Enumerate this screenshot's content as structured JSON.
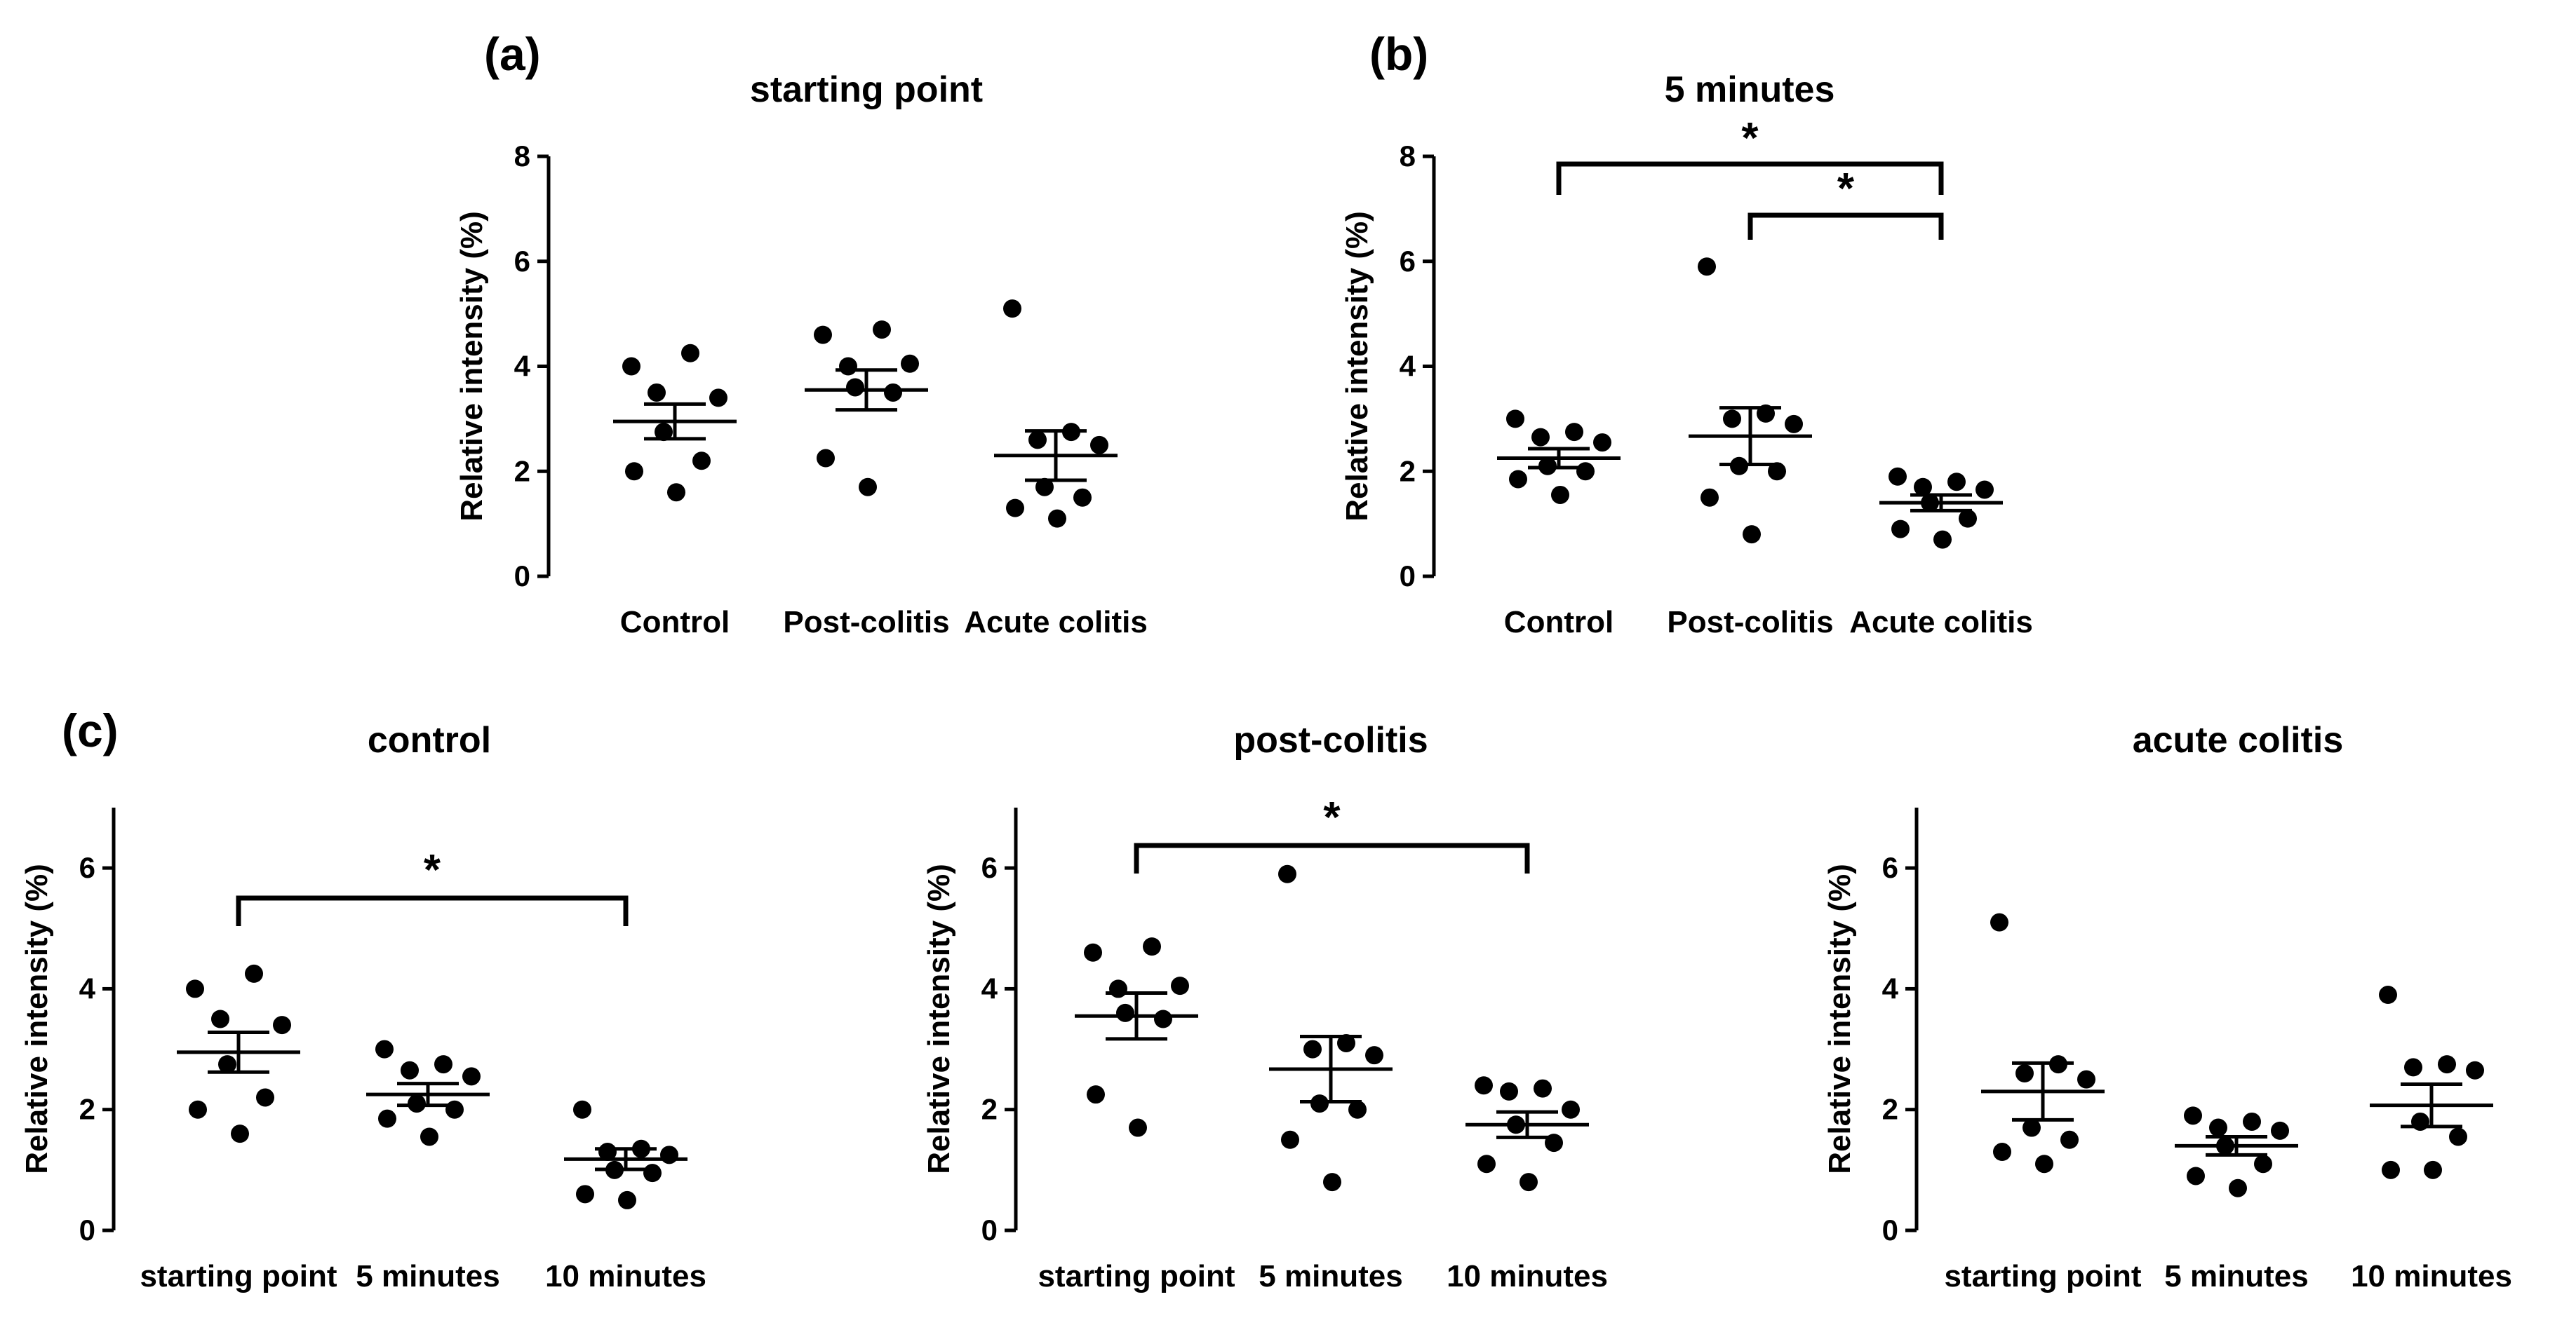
{
  "panel_labels": [
    "(a)",
    "(b)",
    "(c)"
  ],
  "chart_data": [
    {
      "type": "scatter",
      "title": "starting point",
      "ylabel": "Relative intensity (%)",
      "ylim": [
        0,
        8
      ],
      "yticks": [
        0,
        2,
        4,
        6,
        8
      ],
      "categories": [
        "Control",
        "Post-colitis",
        "Acute colitis"
      ],
      "points": [
        [
          4.0,
          4.25,
          3.5,
          3.4,
          2.75,
          2.2,
          2.0,
          1.6
        ],
        [
          4.6,
          4.7,
          4.0,
          4.05,
          3.6,
          3.5,
          2.25,
          1.7
        ],
        [
          5.1,
          2.75,
          2.6,
          2.5,
          1.7,
          1.5,
          1.3,
          1.1
        ]
      ],
      "means": [
        2.95,
        3.55,
        2.3
      ],
      "sem": [
        0.33,
        0.38,
        0.47
      ],
      "significance": []
    },
    {
      "type": "scatter",
      "title": "5 minutes",
      "ylabel": "Relative intensity (%)",
      "ylim": [
        0,
        8
      ],
      "yticks": [
        0,
        2,
        4,
        6,
        8
      ],
      "categories": [
        "Control",
        "Post-colitis",
        "Acute colitis"
      ],
      "points": [
        [
          3.0,
          2.75,
          2.65,
          2.55,
          2.1,
          2.0,
          1.85,
          1.55
        ],
        [
          5.9,
          3.1,
          3.0,
          2.9,
          2.1,
          2.0,
          1.5,
          0.8
        ],
        [
          1.9,
          1.8,
          1.7,
          1.65,
          1.4,
          1.1,
          0.9,
          0.7
        ]
      ],
      "means": [
        2.25,
        2.67,
        1.4
      ],
      "sem": [
        0.18,
        0.54,
        0.15
      ],
      "significance": [
        {
          "from": 0,
          "to": 2,
          "label": "*"
        },
        {
          "from": 1,
          "to": 2,
          "label": "*"
        }
      ]
    },
    {
      "type": "scatter",
      "title": "control",
      "ylabel": "Relative intensity (%)",
      "ylim": [
        0,
        7
      ],
      "yticks": [
        0,
        2,
        4,
        6
      ],
      "categories": [
        "starting point",
        "5 minutes",
        "10 minutes"
      ],
      "points": [
        [
          4.0,
          4.25,
          3.5,
          3.4,
          2.75,
          2.2,
          2.0,
          1.6
        ],
        [
          3.0,
          2.75,
          2.65,
          2.55,
          2.1,
          2.0,
          1.85,
          1.55
        ],
        [
          2.0,
          1.35,
          1.3,
          1.25,
          1.0,
          0.95,
          0.6,
          0.5
        ]
      ],
      "means": [
        2.95,
        2.25,
        1.18
      ],
      "sem": [
        0.33,
        0.18,
        0.17
      ],
      "significance": [
        {
          "from": 0,
          "to": 2,
          "label": "*"
        }
      ]
    },
    {
      "type": "scatter",
      "title": "post-colitis",
      "ylabel": "Relative intensity (%)",
      "ylim": [
        0,
        7
      ],
      "yticks": [
        0,
        2,
        4,
        6
      ],
      "categories": [
        "starting point",
        "5 minutes",
        "10 minutes"
      ],
      "points": [
        [
          4.6,
          4.7,
          4.0,
          4.05,
          3.6,
          3.5,
          2.25,
          1.7
        ],
        [
          5.9,
          3.1,
          3.0,
          2.9,
          2.1,
          2.0,
          1.5,
          0.8
        ],
        [
          2.4,
          2.35,
          2.3,
          2.0,
          1.75,
          1.45,
          1.1,
          0.8
        ]
      ],
      "means": [
        3.55,
        2.67,
        1.75
      ],
      "sem": [
        0.38,
        0.54,
        0.21
      ],
      "significance": [
        {
          "from": 0,
          "to": 2,
          "label": "*"
        }
      ]
    },
    {
      "type": "scatter",
      "title": "acute colitis",
      "ylabel": "Relative intensity (%)",
      "ylim": [
        0,
        7
      ],
      "yticks": [
        0,
        2,
        4,
        6
      ],
      "categories": [
        "starting point",
        "5 minutes",
        "10 minutes"
      ],
      "points": [
        [
          5.1,
          2.75,
          2.6,
          2.5,
          1.7,
          1.5,
          1.3,
          1.1
        ],
        [
          1.9,
          1.8,
          1.7,
          1.65,
          1.4,
          1.1,
          0.9,
          0.7
        ],
        [
          3.9,
          2.75,
          2.7,
          2.65,
          1.8,
          1.55,
          1.0,
          1.0
        ]
      ],
      "means": [
        2.3,
        1.4,
        2.07
      ],
      "sem": [
        0.47,
        0.15,
        0.35
      ],
      "significance": []
    }
  ]
}
